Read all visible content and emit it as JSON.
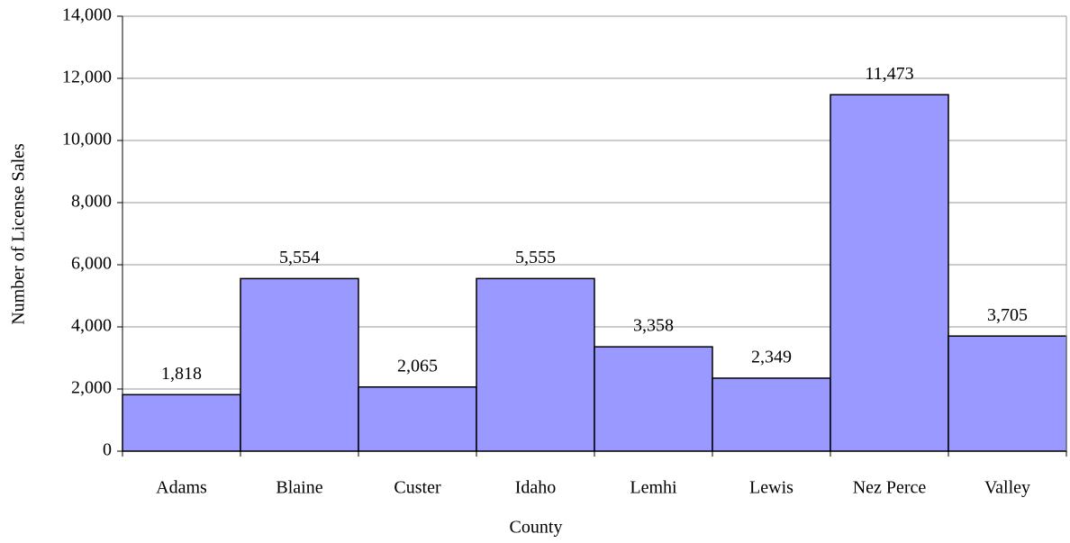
{
  "chart_data": {
    "type": "bar",
    "x_label": "County",
    "y_label": "Number of License Sales",
    "categories": [
      "Adams",
      "Blaine",
      "Custer",
      "Idaho",
      "Lemhi",
      "Lewis",
      "Nez Perce",
      "Valley"
    ],
    "values": [
      1818,
      5554,
      2065,
      5555,
      3358,
      2349,
      11473,
      3705
    ],
    "value_labels": [
      "1,818",
      "5,554",
      "2,065",
      "5,555",
      "3,358",
      "2,349",
      "11,473",
      "3,705"
    ],
    "color": "#9999ff",
    "ylim": [
      0,
      14000
    ],
    "yticks": [
      0,
      {
        "value": 2000,
        "label": "2,000"
      },
      {
        "value": 4000,
        "label": "4,000"
      },
      {
        "value": 6000,
        "label": "6,000"
      },
      {
        "value": 8000,
        "label": "8,000"
      },
      {
        "value": 10000,
        "label": "10,000"
      },
      {
        "value": 12000,
        "label": "12,000"
      },
      {
        "value": 14000,
        "label": "14,000"
      }
    ],
    "grid": true
  }
}
